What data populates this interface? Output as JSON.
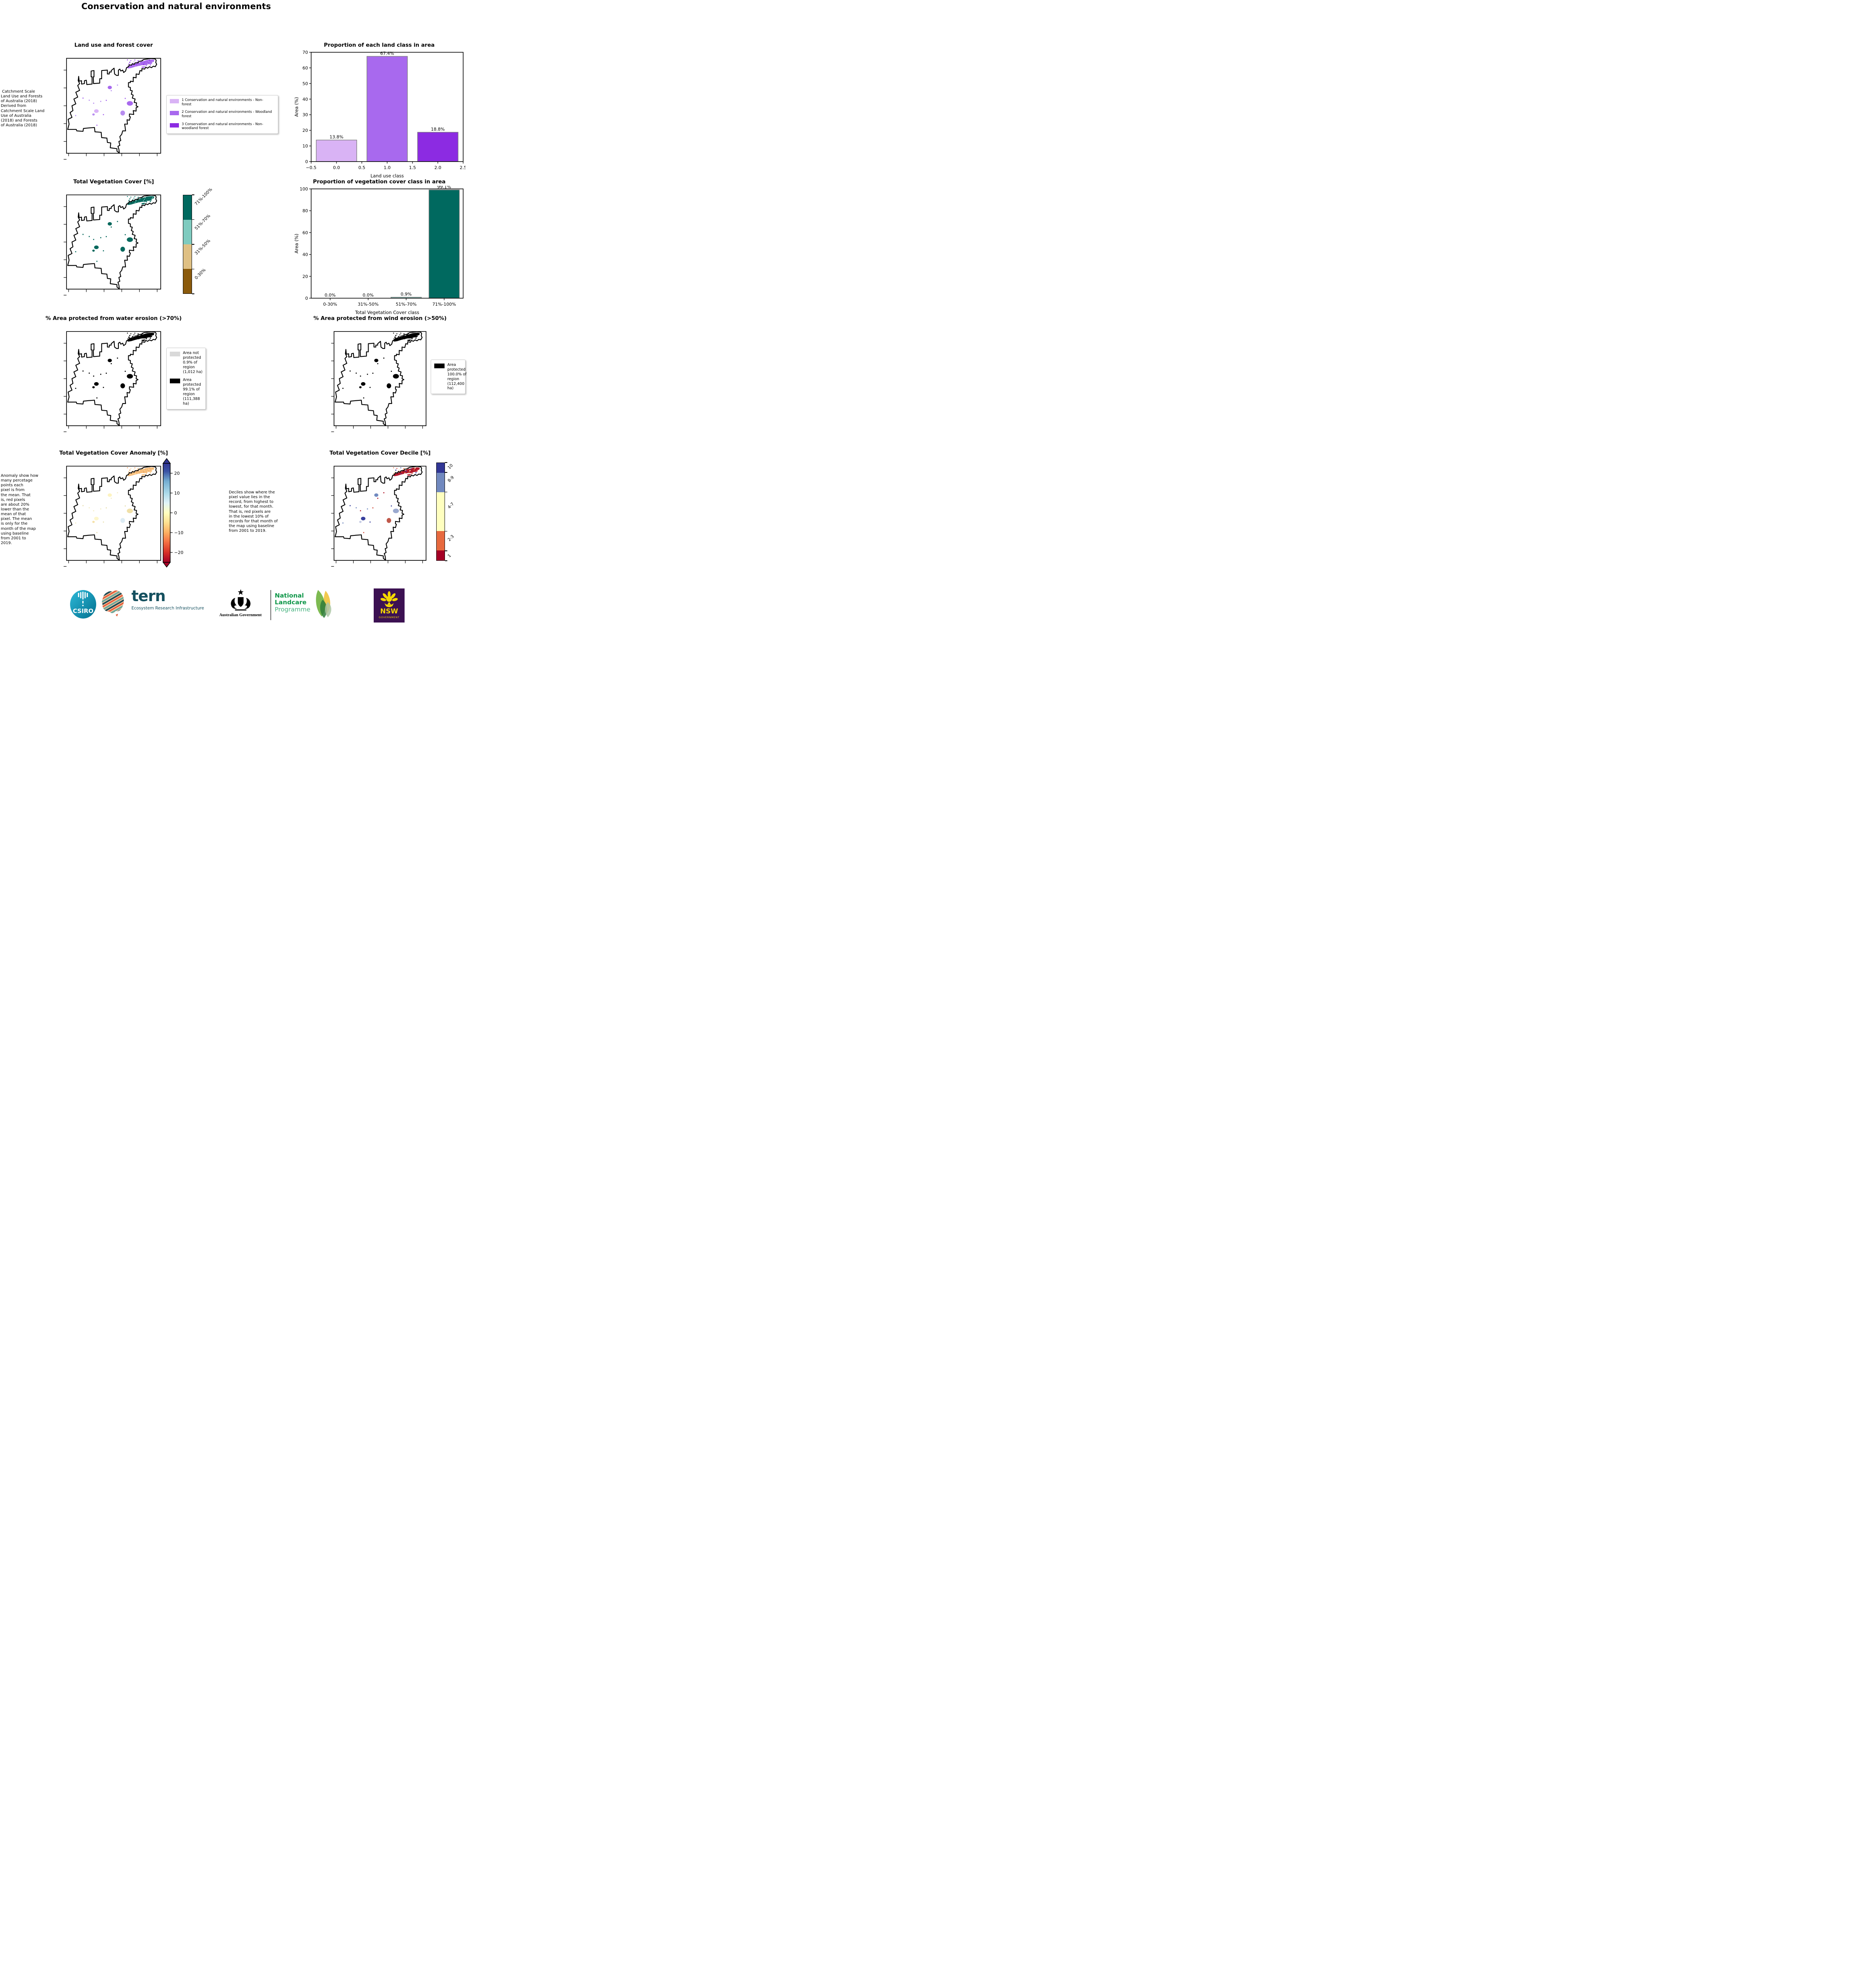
{
  "page_title": "Conservation and natural environments",
  "panels": {
    "landuse": {
      "title": "Land use and forest cover",
      "caption": " Catchment Scale\nLand Use and Forests\nof Australia (2018)\nDerived from\nCatchment Scale Land\nUse of Australia\n(2018) and Forests\nof Australia (2018)",
      "legend": [
        {
          "color": "#d9b3f5",
          "label": "1 Conservation and natural environments - Non-\nforest"
        },
        {
          "color": "#a869ee",
          "label": "2 Conservation and natural environments - Woodland\nforest"
        },
        {
          "color": "#8c2be2",
          "label": "3 Conservation and natural environments - Non-\nwoodland forest"
        }
      ]
    },
    "vegcover": {
      "title": "Total Vegetation Cover [%]",
      "colorbar": [
        {
          "color": "#00695f",
          "label": "71%-100%"
        },
        {
          "color": "#7fcbbf",
          "label": "51%-70%"
        },
        {
          "color": "#dfc084",
          "label": "31%-50%"
        },
        {
          "color": "#8a5a0c",
          "label": "0-30%"
        }
      ]
    },
    "water": {
      "title": "% Area protected from water erosion (>70%)",
      "legend": [
        {
          "color": "#d9d9d9",
          "label": "Area not\nprotected\n0.9% of\nregion\n(1,012 ha)"
        },
        {
          "color": "#000000",
          "label": "Area\nprotected\n99.1% of\nregion\n(111,388\nha)"
        }
      ]
    },
    "wind": {
      "title": "% Area protected from wind erosion (>50%)",
      "legend": [
        {
          "color": "#000000",
          "label": "Area\nprotected\n100.0% of\nregion\n(112,400\nha)"
        }
      ]
    },
    "anomaly": {
      "title": "Total Vegetation Cover Anomaly [%]",
      "caption": "Anomaly show how\nmany percetage\npoints each\npixel is from\nthe mean. That\nis, red pixels\nare about 20%\nlower than the\nmean of that\npixel. The mean\nis only for the\nmonth of the map\nusing baseline\nfrom 2001 to\n2019.",
      "colorbar_ticks": [
        "20",
        "10",
        "0",
        "−10",
        "−20"
      ]
    },
    "decile": {
      "title": "Total Vegetation Cover Decile [%]",
      "caption": "Deciles show where the\npixel value lies in the\nrecord, from highest to\nlowest, for that month.\nThat is, red pixels are\nin the lowest 10% of\nrecords for that month of\nthe map using baseline\nfrom 2001 to 2019.",
      "colorbar": [
        {
          "color": "#313695",
          "label": "10",
          "span": 10
        },
        {
          "color": "#7189bf",
          "label": "8-9",
          "span": 20
        },
        {
          "color": "#ffffbf",
          "label": "4-7",
          "span": 40
        },
        {
          "color": "#e7693e",
          "label": "2-3",
          "span": 20
        },
        {
          "color": "#a50026",
          "label": "1",
          "span": 10
        }
      ]
    }
  },
  "chart_data": [
    {
      "type": "bar",
      "title": "Proportion of each land class in area",
      "xlabel": "Land use class",
      "ylabel": "Area (%)",
      "x": [
        0,
        1,
        2
      ],
      "values": [
        13.8,
        67.4,
        18.8
      ],
      "value_labels": [
        "13.8%",
        "67.4%",
        "18.8%"
      ],
      "bar_colors": [
        "#d9b3f5",
        "#a869ee",
        "#8c2be2"
      ],
      "bar_width": 0.8,
      "xlim": [
        -0.5,
        2.5
      ],
      "ylim": [
        0,
        70
      ],
      "xticks": [
        -0.5,
        0,
        0.5,
        1,
        1.5,
        2,
        2.5
      ],
      "xtick_labels": [
        "−0.5",
        "0.0",
        "0.5",
        "1.0",
        "1.5",
        "2.0",
        "2.5"
      ],
      "yticks": [
        0,
        10,
        20,
        30,
        40,
        50,
        60,
        70
      ],
      "grid": false,
      "legend_position": "none"
    },
    {
      "type": "bar",
      "title": "Proportion of vegetation cover class in area",
      "xlabel": "Total Vegetation Cover class",
      "ylabel": "Area (%)",
      "categories": [
        "0-30%",
        "31%-50%",
        "51%-70%",
        "71%-100%"
      ],
      "values": [
        0.0,
        0.0,
        0.9,
        99.1
      ],
      "value_labels": [
        "0.0%",
        "0.0%",
        "0.9%",
        "99.1%"
      ],
      "bar_colors": [
        "#8a5a0c",
        "#dfc084",
        "#7fcbbf",
        "#00695f"
      ],
      "ylim": [
        0,
        100
      ],
      "yticks": [
        0,
        20,
        40,
        60,
        80,
        100
      ],
      "grid": false,
      "legend_position": "none"
    }
  ],
  "footer": {
    "csiro": "CSIRO",
    "tern": "tern",
    "tern_subtitle": "Ecosystem Research Infrastructure",
    "aus_gov": "Australian Government",
    "nlp_line1": "National",
    "nlp_line2": "Landcare",
    "nlp_line3": "Programme",
    "nsw": "NSW",
    "nsw_sub": "GOVERNMENT"
  }
}
